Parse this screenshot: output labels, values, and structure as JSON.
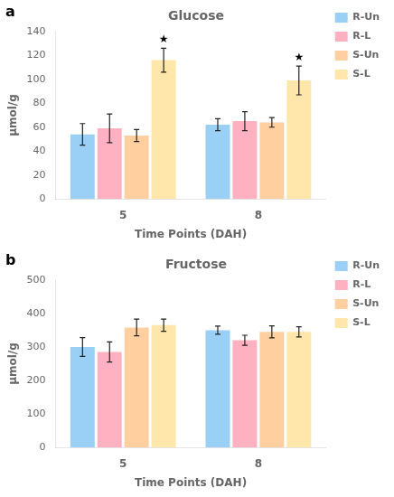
{
  "chart_data": [
    {
      "type": "bar",
      "panel_label": "a",
      "title": "Glucose",
      "ylabel": "μmol/g",
      "xlabel": "Time Points (DAH)",
      "categories": [
        "5",
        "8"
      ],
      "series": [
        {
          "name": "R-Un",
          "values": [
            54,
            62
          ],
          "errors": [
            9,
            5
          ]
        },
        {
          "name": "R-L",
          "values": [
            59,
            65
          ],
          "errors": [
            12,
            8
          ]
        },
        {
          "name": "S-Un",
          "values": [
            53,
            64
          ],
          "errors": [
            5,
            4
          ]
        },
        {
          "name": "S-L",
          "values": [
            116,
            99
          ],
          "errors": [
            10,
            12
          ]
        }
      ],
      "annotations": [
        {
          "text": "★",
          "category": "5",
          "series": "S-L"
        },
        {
          "text": "★",
          "category": "8",
          "series": "S-L"
        }
      ],
      "ylim": [
        0,
        140
      ],
      "yticks": [
        0,
        20,
        40,
        60,
        80,
        100,
        120,
        140
      ],
      "grid": false,
      "legend": "right"
    },
    {
      "type": "bar",
      "panel_label": "b",
      "title": "Fructose",
      "ylabel": "μmol/g",
      "xlabel": "Time Points (DAH)",
      "categories": [
        "5",
        "8"
      ],
      "series": [
        {
          "name": "R-Un",
          "values": [
            300,
            350
          ],
          "errors": [
            28,
            12
          ]
        },
        {
          "name": "R-L",
          "values": [
            285,
            320
          ],
          "errors": [
            30,
            15
          ]
        },
        {
          "name": "S-Un",
          "values": [
            358,
            345
          ],
          "errors": [
            25,
            18
          ]
        },
        {
          "name": "S-L",
          "values": [
            365,
            345
          ],
          "errors": [
            18,
            15
          ]
        }
      ],
      "ylim": [
        0,
        500
      ],
      "yticks": [
        0,
        100,
        200,
        300,
        400,
        500
      ],
      "grid": false,
      "legend": "right"
    }
  ]
}
